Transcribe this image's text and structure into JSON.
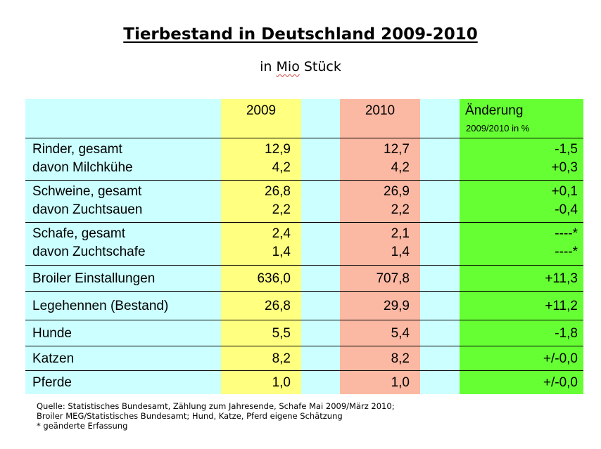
{
  "title": "Tierbestand in Deutschland 2009-2010",
  "subtitle_prefix": "in ",
  "subtitle_mio": "Mio",
  "subtitle_suffix": " Stück",
  "header": {
    "col_2009": "2009",
    "col_2010": "2010",
    "col_change": "Änderung",
    "col_change_sub": "2009/2010 in %"
  },
  "colors": {
    "label_bg": "#ccffff",
    "col_2009_bg": "#ffff80",
    "col_2010_bg": "#fbb8a2",
    "col_change_bg": "#66ff33"
  },
  "groups": [
    {
      "rows": [
        {
          "label": "Rinder, gesamt",
          "v2009": "12,9",
          "v2010": "12,7",
          "change": "-1,5"
        },
        {
          "label": "davon Milchkühe",
          "v2009": "4,2",
          "v2010": "4,2",
          "change": "+0,3"
        }
      ]
    },
    {
      "rows": [
        {
          "label": "Schweine, gesamt",
          "v2009": "26,8",
          "v2010": "26,9",
          "change": "+0,1"
        },
        {
          "label": "davon Zuchtsauen",
          "v2009": "2,2",
          "v2010": "2,2",
          "change": "-0,4"
        }
      ]
    },
    {
      "rows": [
        {
          "label": "Schafe, gesamt",
          "v2009": "2,4",
          "v2010": "2,1",
          "change": "----*"
        },
        {
          "label": "davon Zuchtschafe",
          "v2009": "1,4",
          "v2010": "1,4",
          "change": "----*"
        }
      ]
    },
    {
      "rows": [
        {
          "label": "Broiler Einstallungen",
          "v2009": "636,0",
          "v2010": "707,8",
          "change": "+11,3"
        }
      ]
    },
    {
      "rows": [
        {
          "label": "Legehennen (Bestand)",
          "v2009": "26,8",
          "v2010": "29,9",
          "change": "+11,2"
        }
      ]
    },
    {
      "rows": [
        {
          "label": "Hunde",
          "v2009": "5,5",
          "v2010": "5,4",
          "change": "-1,8"
        }
      ]
    },
    {
      "rows": [
        {
          "label": "Katzen",
          "v2009": "8,2",
          "v2010": "8,2",
          "change": "+/-0,0"
        }
      ]
    },
    {
      "rows": [
        {
          "label": "Pferde",
          "v2009": "1,0",
          "v2010": "1,0",
          "change": "+/-0,0"
        }
      ]
    }
  ],
  "footnotes": [
    "Quelle: Statistisches Bundesamt, Zählung zum Jahresende, Schafe Mai 2009/März 2010;",
    "Broiler MEG/Statistisches Bundesamt; Hund, Katze, Pferd eigene Schätzung",
    "* geänderte Erfassung"
  ]
}
